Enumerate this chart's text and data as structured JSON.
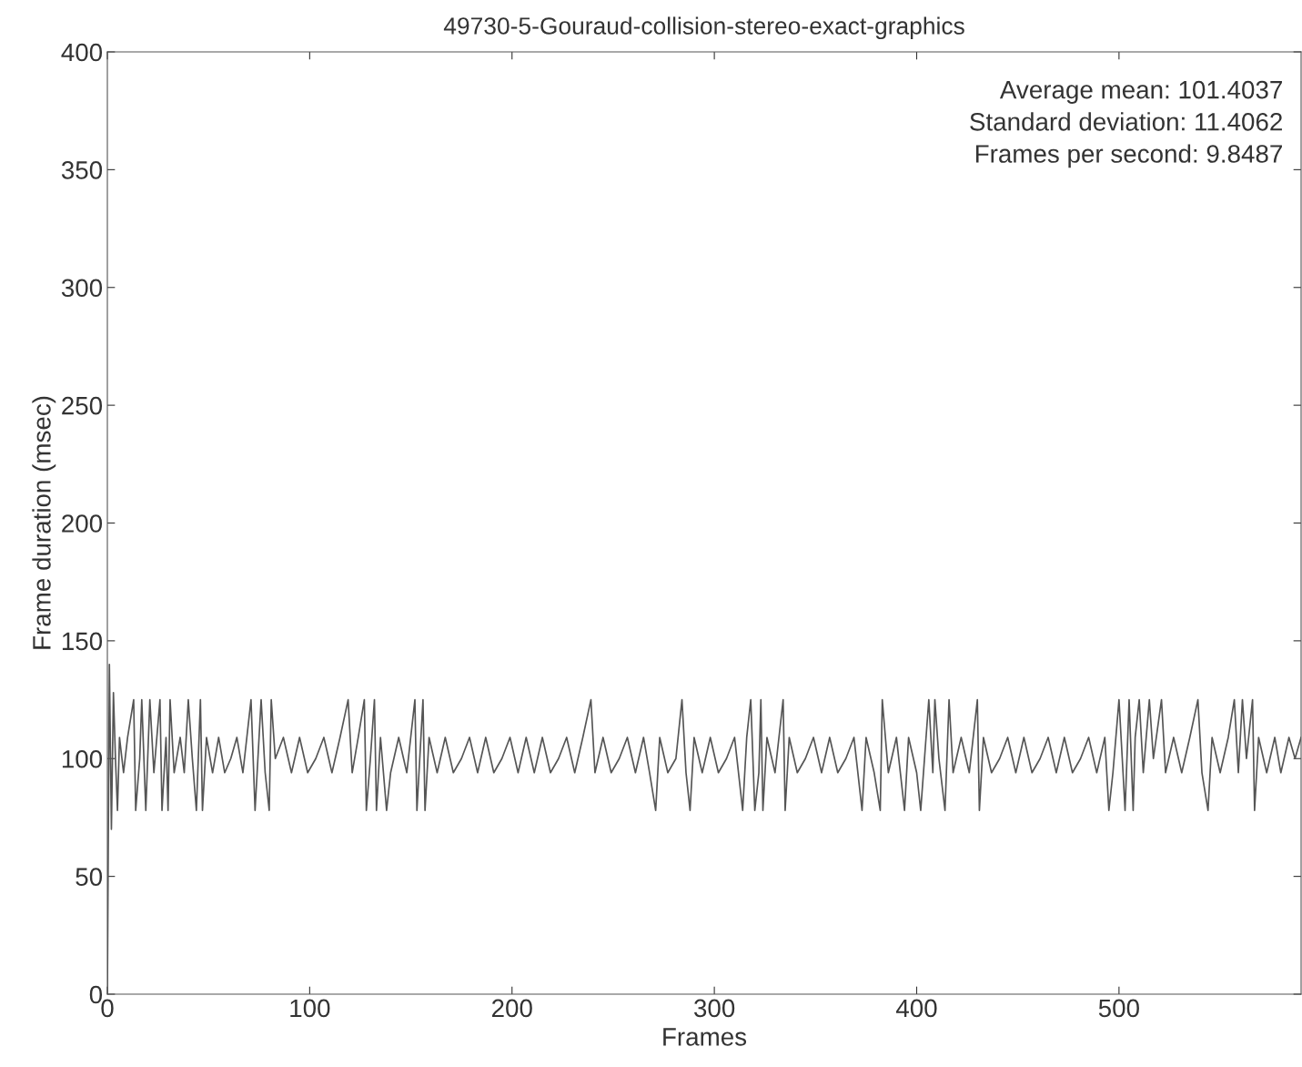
{
  "chart_data": {
    "type": "line",
    "title": "49730-5-Gouraud-collision-stereo-exact-graphics",
    "xlabel": "Frames",
    "ylabel": "Frame duration (msec)",
    "x": [
      0,
      1,
      2,
      3,
      4,
      5,
      6,
      8,
      10,
      13,
      14,
      16,
      17,
      19,
      21,
      23,
      26,
      27,
      29,
      30,
      31,
      33,
      36,
      38,
      40,
      42,
      44,
      46,
      47,
      49,
      52,
      55,
      58,
      61,
      64,
      67,
      71,
      73,
      76,
      78,
      80,
      81,
      83,
      87,
      91,
      95,
      99,
      103,
      107,
      111,
      115,
      119,
      121,
      124,
      127,
      128,
      130,
      132,
      133,
      135,
      138,
      140,
      144,
      148,
      152,
      153,
      156,
      157,
      159,
      163,
      167,
      171,
      175,
      179,
      183,
      187,
      191,
      195,
      199,
      203,
      207,
      211,
      215,
      219,
      223,
      227,
      231,
      235,
      239,
      241,
      245,
      249,
      253,
      257,
      261,
      265,
      268,
      271,
      273,
      277,
      281,
      284,
      286,
      288,
      290,
      294,
      298,
      302,
      306,
      310,
      314,
      316,
      318,
      320,
      322,
      323,
      324,
      326,
      330,
      334,
      335,
      337,
      341,
      345,
      349,
      353,
      357,
      361,
      365,
      369,
      373,
      375,
      379,
      382,
      383,
      386,
      390,
      394,
      396,
      400,
      402,
      406,
      408,
      409,
      411,
      414,
      416,
      418,
      422,
      426,
      430,
      431,
      433,
      437,
      441,
      445,
      449,
      453,
      457,
      461,
      465,
      469,
      473,
      477,
      481,
      485,
      489,
      493,
      495,
      497,
      500,
      502,
      503,
      505,
      507,
      508,
      510,
      512,
      515,
      517,
      521,
      523,
      527,
      531,
      535,
      539,
      541,
      544,
      546,
      550,
      554,
      557,
      559,
      561,
      563,
      566,
      567,
      569,
      573,
      577,
      580,
      584,
      587,
      590
    ],
    "series": [
      {
        "color": "#555555",
        "values": [
          0,
          140,
          70,
          128,
          100,
          78,
          109,
          94,
          109,
          125,
          78,
          100,
          125,
          78,
          125,
          94,
          125,
          78,
          109,
          78,
          125,
          94,
          109,
          94,
          125,
          100,
          78,
          125,
          78,
          109,
          94,
          109,
          94,
          100,
          109,
          94,
          125,
          78,
          125,
          94,
          78,
          125,
          100,
          109,
          94,
          109,
          94,
          100,
          109,
          94,
          109,
          125,
          94,
          109,
          125,
          78,
          100,
          125,
          78,
          109,
          78,
          94,
          109,
          94,
          125,
          78,
          125,
          78,
          109,
          94,
          109,
          94,
          100,
          109,
          94,
          109,
          94,
          100,
          109,
          94,
          109,
          94,
          109,
          94,
          100,
          109,
          94,
          109,
          125,
          94,
          109,
          94,
          100,
          109,
          94,
          109,
          94,
          78,
          109,
          94,
          100,
          125,
          94,
          78,
          109,
          94,
          109,
          94,
          100,
          109,
          78,
          109,
          125,
          78,
          94,
          125,
          78,
          109,
          94,
          125,
          78,
          109,
          94,
          100,
          109,
          94,
          109,
          94,
          100,
          109,
          78,
          109,
          94,
          78,
          125,
          94,
          109,
          78,
          109,
          94,
          78,
          125,
          94,
          125,
          100,
          78,
          125,
          94,
          109,
          94,
          125,
          78,
          109,
          94,
          100,
          109,
          94,
          109,
          94,
          100,
          109,
          94,
          109,
          94,
          100,
          109,
          94,
          109,
          78,
          94,
          125,
          94,
          78,
          125,
          78,
          109,
          125,
          94,
          125,
          100,
          125,
          94,
          109,
          94,
          109,
          125,
          94,
          78,
          109,
          94,
          109,
          125,
          94,
          125,
          100,
          125,
          78,
          109,
          94,
          109,
          94,
          109,
          100,
          109
        ]
      }
    ],
    "xlim": [
      0,
      590
    ],
    "ylim": [
      0,
      400
    ],
    "xticks": [
      0,
      100,
      200,
      300,
      400,
      500
    ],
    "yticks": [
      0,
      50,
      100,
      150,
      200,
      250,
      300,
      350,
      400
    ],
    "grid": false,
    "legend": false,
    "marker": "none",
    "line_style": "solid",
    "annotations": [
      "Average mean: 101.4037",
      "Standard deviation: 11.4062",
      "Frames per second: 9.8487"
    ]
  }
}
